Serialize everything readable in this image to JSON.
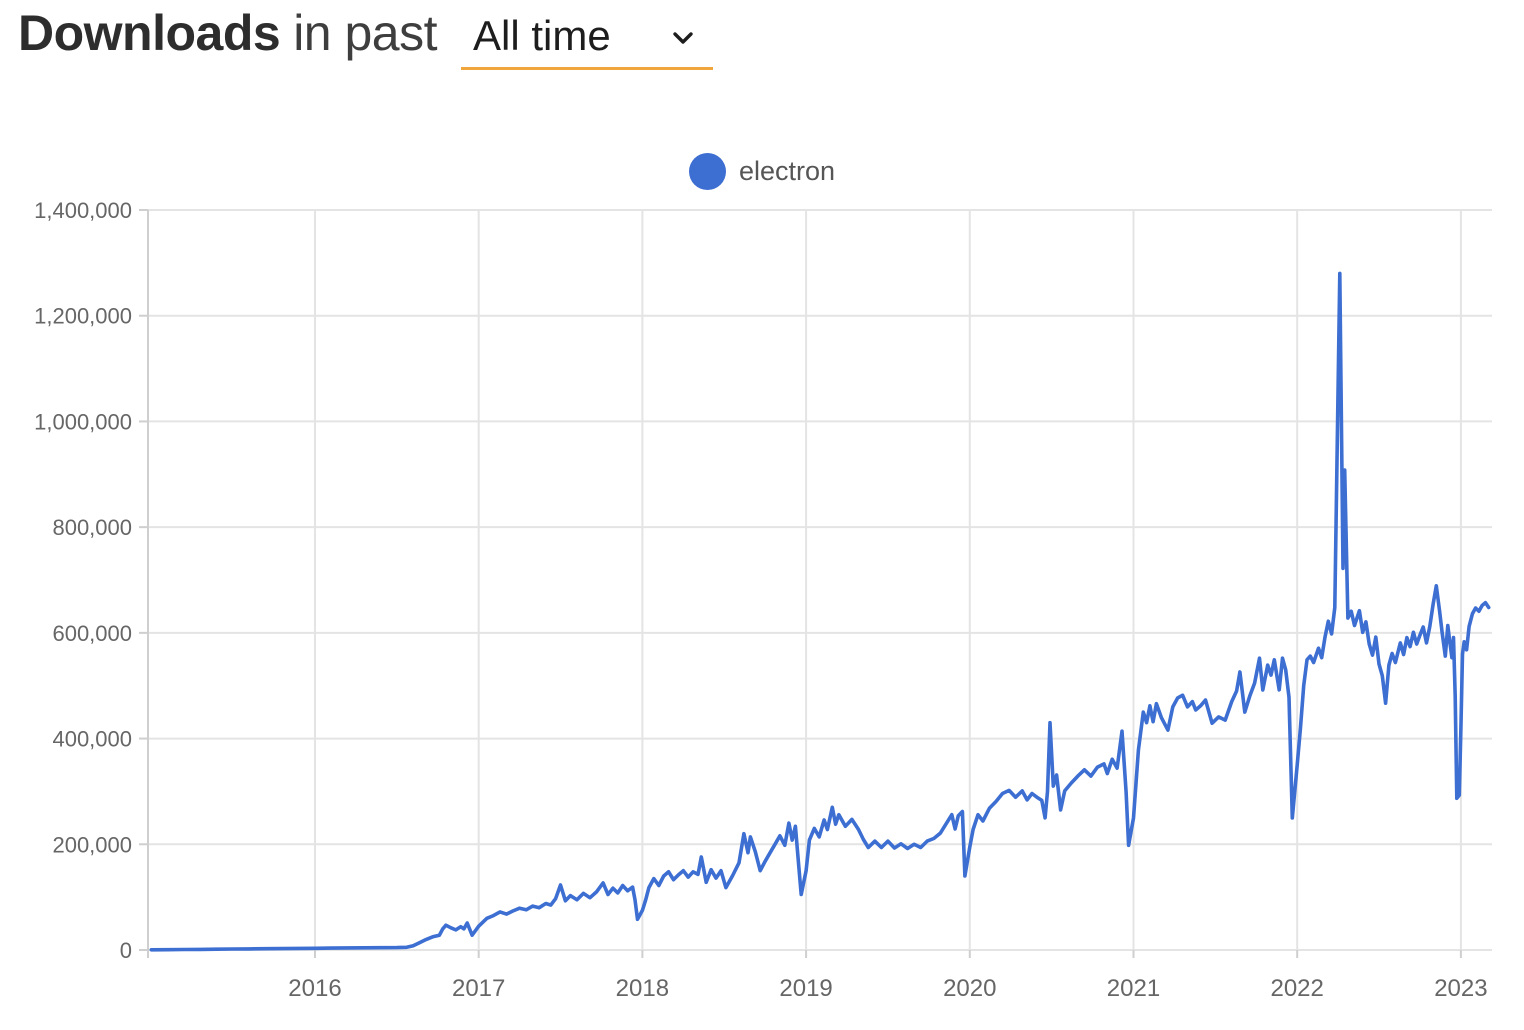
{
  "header": {
    "title_bold": "Downloads",
    "title_rest": "in past",
    "range_selector": {
      "value": "All time",
      "underline_color": "#F0A63C",
      "icon": "chevron-down-icon"
    }
  },
  "legend": {
    "items": [
      {
        "label": "electron",
        "color": "#3D6ED2"
      }
    ]
  },
  "colors": {
    "grid": "#E4E4E4",
    "axis": "#CFCFCF",
    "tick_label": "#666666",
    "background": "#FFFFFF"
  },
  "chart_data": {
    "type": "line",
    "title": "Downloads in past All time",
    "xlabel": "",
    "ylabel": "",
    "grid": true,
    "legend_position": "top-center",
    "xlim": [
      2014.98,
      2023.19
    ],
    "ylim": [
      0,
      1400000
    ],
    "x_ticks": [
      {
        "value": 2016,
        "label": "2016"
      },
      {
        "value": 2017,
        "label": "2017"
      },
      {
        "value": 2018,
        "label": "2018"
      },
      {
        "value": 2019,
        "label": "2019"
      },
      {
        "value": 2020,
        "label": "2020"
      },
      {
        "value": 2021,
        "label": "2021"
      },
      {
        "value": 2022,
        "label": "2022"
      },
      {
        "value": 2023,
        "label": "2023"
      }
    ],
    "y_ticks": [
      {
        "value": 0,
        "label": "0"
      },
      {
        "value": 200000,
        "label": "200,000"
      },
      {
        "value": 400000,
        "label": "400,000"
      },
      {
        "value": 600000,
        "label": "600,000"
      },
      {
        "value": 800000,
        "label": "800,000"
      },
      {
        "value": 1000000,
        "label": "1,000,000"
      },
      {
        "value": 1200000,
        "label": "1,200,000"
      },
      {
        "value": 1400000,
        "label": "1,400,000"
      }
    ],
    "series": [
      {
        "name": "electron",
        "color": "#3D6ED2",
        "stroke_width": 3.6,
        "points": [
          [
            2015.0,
            300
          ],
          [
            2015.1,
            600
          ],
          [
            2015.2,
            900
          ],
          [
            2015.3,
            1200
          ],
          [
            2015.4,
            1500
          ],
          [
            2015.5,
            1800
          ],
          [
            2015.6,
            2100
          ],
          [
            2015.7,
            2400
          ],
          [
            2015.8,
            2700
          ],
          [
            2015.9,
            3000
          ],
          [
            2016.0,
            3300
          ],
          [
            2016.1,
            3600
          ],
          [
            2016.2,
            3900
          ],
          [
            2016.3,
            4100
          ],
          [
            2016.4,
            4300
          ],
          [
            2016.5,
            4600
          ],
          [
            2016.56,
            5200
          ],
          [
            2016.6,
            8000
          ],
          [
            2016.64,
            14000
          ],
          [
            2016.68,
            20000
          ],
          [
            2016.72,
            25000
          ],
          [
            2016.76,
            28000
          ],
          [
            2016.78,
            40000
          ],
          [
            2016.8,
            47000
          ],
          [
            2016.83,
            42000
          ],
          [
            2016.86,
            38000
          ],
          [
            2016.89,
            44000
          ],
          [
            2016.91,
            40000
          ],
          [
            2016.93,
            51000
          ],
          [
            2016.96,
            28000
          ],
          [
            2017.0,
            45000
          ],
          [
            2017.05,
            60000
          ],
          [
            2017.09,
            65000
          ],
          [
            2017.13,
            72000
          ],
          [
            2017.17,
            68000
          ],
          [
            2017.21,
            74000
          ],
          [
            2017.25,
            79000
          ],
          [
            2017.29,
            76000
          ],
          [
            2017.33,
            83000
          ],
          [
            2017.37,
            80000
          ],
          [
            2017.41,
            88000
          ],
          [
            2017.44,
            85000
          ],
          [
            2017.47,
            97000
          ],
          [
            2017.5,
            123000
          ],
          [
            2017.53,
            93000
          ],
          [
            2017.56,
            103000
          ],
          [
            2017.6,
            95000
          ],
          [
            2017.64,
            107000
          ],
          [
            2017.68,
            99000
          ],
          [
            2017.72,
            110000
          ],
          [
            2017.76,
            127000
          ],
          [
            2017.79,
            105000
          ],
          [
            2017.82,
            117000
          ],
          [
            2017.85,
            108000
          ],
          [
            2017.88,
            122000
          ],
          [
            2017.91,
            112000
          ],
          [
            2017.94,
            119000
          ],
          [
            2017.955,
            95000
          ],
          [
            2017.97,
            58000
          ],
          [
            2018.0,
            75000
          ],
          [
            2018.02,
            95000
          ],
          [
            2018.04,
            118000
          ],
          [
            2018.07,
            135000
          ],
          [
            2018.1,
            122000
          ],
          [
            2018.13,
            140000
          ],
          [
            2018.16,
            148000
          ],
          [
            2018.19,
            133000
          ],
          [
            2018.22,
            142000
          ],
          [
            2018.25,
            150000
          ],
          [
            2018.28,
            138000
          ],
          [
            2018.31,
            148000
          ],
          [
            2018.34,
            143000
          ],
          [
            2018.36,
            176000
          ],
          [
            2018.39,
            128000
          ],
          [
            2018.42,
            152000
          ],
          [
            2018.45,
            136000
          ],
          [
            2018.48,
            150000
          ],
          [
            2018.51,
            118000
          ],
          [
            2018.55,
            140000
          ],
          [
            2018.59,
            165000
          ],
          [
            2018.62,
            220000
          ],
          [
            2018.645,
            184000
          ],
          [
            2018.66,
            214000
          ],
          [
            2018.69,
            186000
          ],
          [
            2018.72,
            150000
          ],
          [
            2018.75,
            168000
          ],
          [
            2018.78,
            184000
          ],
          [
            2018.81,
            200000
          ],
          [
            2018.84,
            216000
          ],
          [
            2018.87,
            198000
          ],
          [
            2018.895,
            240000
          ],
          [
            2018.915,
            208000
          ],
          [
            2018.935,
            234000
          ],
          [
            2018.955,
            160000
          ],
          [
            2018.97,
            105000
          ],
          [
            2019.0,
            150000
          ],
          [
            2019.02,
            208000
          ],
          [
            2019.05,
            230000
          ],
          [
            2019.08,
            214000
          ],
          [
            2019.11,
            246000
          ],
          [
            2019.13,
            228000
          ],
          [
            2019.16,
            270000
          ],
          [
            2019.18,
            238000
          ],
          [
            2019.2,
            256000
          ],
          [
            2019.24,
            234000
          ],
          [
            2019.28,
            247000
          ],
          [
            2019.32,
            228000
          ],
          [
            2019.35,
            209000
          ],
          [
            2019.38,
            194000
          ],
          [
            2019.42,
            206000
          ],
          [
            2019.46,
            194000
          ],
          [
            2019.5,
            206000
          ],
          [
            2019.54,
            193000
          ],
          [
            2019.58,
            201000
          ],
          [
            2019.62,
            192000
          ],
          [
            2019.66,
            200000
          ],
          [
            2019.7,
            194000
          ],
          [
            2019.74,
            206000
          ],
          [
            2019.78,
            211000
          ],
          [
            2019.82,
            221000
          ],
          [
            2019.86,
            241000
          ],
          [
            2019.89,
            256000
          ],
          [
            2019.91,
            229000
          ],
          [
            2019.93,
            254000
          ],
          [
            2019.955,
            262000
          ],
          [
            2019.97,
            140000
          ],
          [
            2020.0,
            195000
          ],
          [
            2020.02,
            228000
          ],
          [
            2020.05,
            256000
          ],
          [
            2020.08,
            244000
          ],
          [
            2020.12,
            268000
          ],
          [
            2020.16,
            281000
          ],
          [
            2020.2,
            296000
          ],
          [
            2020.24,
            302000
          ],
          [
            2020.28,
            289000
          ],
          [
            2020.32,
            301000
          ],
          [
            2020.35,
            284000
          ],
          [
            2020.38,
            296000
          ],
          [
            2020.41,
            289000
          ],
          [
            2020.44,
            283000
          ],
          [
            2020.46,
            250000
          ],
          [
            2020.475,
            300000
          ],
          [
            2020.49,
            430000
          ],
          [
            2020.51,
            310000
          ],
          [
            2020.53,
            331000
          ],
          [
            2020.555,
            265000
          ],
          [
            2020.58,
            301000
          ],
          [
            2020.62,
            316000
          ],
          [
            2020.66,
            329000
          ],
          [
            2020.7,
            341000
          ],
          [
            2020.74,
            329000
          ],
          [
            2020.78,
            346000
          ],
          [
            2020.82,
            352000
          ],
          [
            2020.84,
            334000
          ],
          [
            2020.87,
            361000
          ],
          [
            2020.9,
            344000
          ],
          [
            2020.93,
            414000
          ],
          [
            2020.955,
            299000
          ],
          [
            2020.97,
            198000
          ],
          [
            2021.0,
            250000
          ],
          [
            2021.03,
            378000
          ],
          [
            2021.06,
            450000
          ],
          [
            2021.08,
            430000
          ],
          [
            2021.1,
            462000
          ],
          [
            2021.12,
            432000
          ],
          [
            2021.14,
            466000
          ],
          [
            2021.17,
            440000
          ],
          [
            2021.21,
            416000
          ],
          [
            2021.24,
            460000
          ],
          [
            2021.27,
            477000
          ],
          [
            2021.3,
            482000
          ],
          [
            2021.33,
            460000
          ],
          [
            2021.36,
            470000
          ],
          [
            2021.38,
            454000
          ],
          [
            2021.41,
            462000
          ],
          [
            2021.44,
            473000
          ],
          [
            2021.48,
            429000
          ],
          [
            2021.52,
            441000
          ],
          [
            2021.56,
            435000
          ],
          [
            2021.6,
            470000
          ],
          [
            2021.63,
            490000
          ],
          [
            2021.65,
            526000
          ],
          [
            2021.68,
            450000
          ],
          [
            2021.71,
            480000
          ],
          [
            2021.74,
            505000
          ],
          [
            2021.77,
            552000
          ],
          [
            2021.79,
            492000
          ],
          [
            2021.82,
            539000
          ],
          [
            2021.84,
            520000
          ],
          [
            2021.86,
            549000
          ],
          [
            2021.89,
            492000
          ],
          [
            2021.91,
            552000
          ],
          [
            2021.93,
            530000
          ],
          [
            2021.95,
            478000
          ],
          [
            2021.97,
            250000
          ],
          [
            2022.0,
            350000
          ],
          [
            2022.02,
            421000
          ],
          [
            2022.04,
            500000
          ],
          [
            2022.06,
            549000
          ],
          [
            2022.08,
            556000
          ],
          [
            2022.1,
            544000
          ],
          [
            2022.13,
            571000
          ],
          [
            2022.15,
            553000
          ],
          [
            2022.17,
            592000
          ],
          [
            2022.19,
            622000
          ],
          [
            2022.21,
            598000
          ],
          [
            2022.23,
            648000
          ],
          [
            2022.26,
            1280000
          ],
          [
            2022.28,
            722000
          ],
          [
            2022.29,
            908000
          ],
          [
            2022.31,
            628000
          ],
          [
            2022.33,
            641000
          ],
          [
            2022.35,
            614000
          ],
          [
            2022.38,
            642000
          ],
          [
            2022.4,
            601000
          ],
          [
            2022.42,
            621000
          ],
          [
            2022.44,
            579000
          ],
          [
            2022.46,
            558000
          ],
          [
            2022.48,
            592000
          ],
          [
            2022.5,
            541000
          ],
          [
            2022.52,
            519000
          ],
          [
            2022.54,
            467000
          ],
          [
            2022.56,
            539000
          ],
          [
            2022.58,
            561000
          ],
          [
            2022.6,
            544000
          ],
          [
            2022.63,
            581000
          ],
          [
            2022.65,
            559000
          ],
          [
            2022.67,
            591000
          ],
          [
            2022.69,
            574000
          ],
          [
            2022.71,
            601000
          ],
          [
            2022.73,
            579000
          ],
          [
            2022.75,
            596000
          ],
          [
            2022.77,
            611000
          ],
          [
            2022.79,
            581000
          ],
          [
            2022.81,
            612000
          ],
          [
            2022.83,
            654000
          ],
          [
            2022.85,
            689000
          ],
          [
            2022.87,
            641000
          ],
          [
            2022.885,
            601000
          ],
          [
            2022.905,
            556000
          ],
          [
            2022.92,
            614000
          ],
          [
            2022.93,
            589000
          ],
          [
            2022.945,
            553000
          ],
          [
            2022.955,
            591000
          ],
          [
            2022.965,
            480000
          ],
          [
            2022.975,
            287000
          ],
          [
            2022.99,
            293000
          ],
          [
            2023.0,
            420000
          ],
          [
            2023.01,
            560000
          ],
          [
            2023.02,
            583000
          ],
          [
            2023.035,
            568000
          ],
          [
            2023.05,
            612000
          ],
          [
            2023.07,
            636000
          ],
          [
            2023.09,
            647000
          ],
          [
            2023.11,
            641000
          ],
          [
            2023.13,
            652000
          ],
          [
            2023.15,
            657000
          ],
          [
            2023.17,
            648000
          ]
        ]
      }
    ]
  }
}
